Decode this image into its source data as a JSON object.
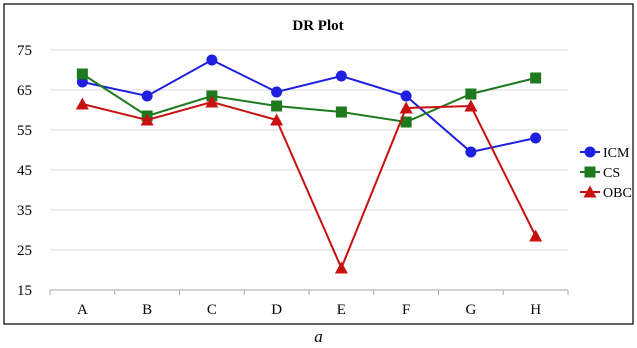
{
  "chart_data": {
    "type": "line",
    "title": "DR Plot",
    "xlabel": "",
    "ylabel": "",
    "categories": [
      "A",
      "B",
      "C",
      "D",
      "E",
      "F",
      "G",
      "H"
    ],
    "ylim": [
      15,
      75
    ],
    "yticks": [
      15,
      25,
      35,
      45,
      55,
      65,
      75
    ],
    "grid": true,
    "legend_position": "right",
    "series": [
      {
        "name": "ICM",
        "color": "#1F1FE0",
        "marker": "circle",
        "values": [
          67,
          63.5,
          72.5,
          64.5,
          68.5,
          63.5,
          49.5,
          53
        ]
      },
      {
        "name": "CS",
        "color": "#1E7A1E",
        "marker": "square",
        "values": [
          69,
          58.5,
          63.5,
          61,
          59.5,
          57,
          64,
          68
        ]
      },
      {
        "name": "OBC",
        "color": "#C81010",
        "marker": "triangle",
        "values": [
          61.5,
          57.5,
          62,
          57.5,
          20.5,
          60.5,
          61,
          28.5
        ]
      }
    ]
  },
  "caption": "a"
}
